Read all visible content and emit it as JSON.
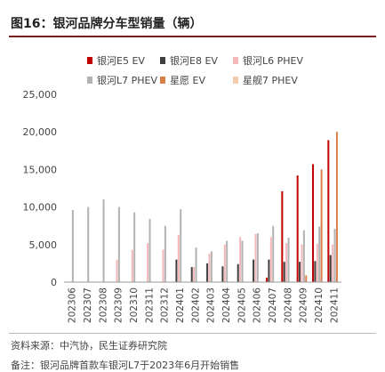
{
  "figure": {
    "title": "图16：银河品牌分车型销量（辆）",
    "source": "资料来源：中汽协，民生证券研究院",
    "note": "备注：银河品牌首款车银河L7于2023年6月开始销售"
  },
  "chart_data": {
    "type": "bar",
    "title": "",
    "xlabel": "",
    "ylabel": "",
    "ylim": [
      0,
      25000
    ],
    "yticks": [
      0,
      5000,
      10000,
      15000,
      20000,
      25000
    ],
    "ytick_labels": [
      "0",
      "5,000",
      "10,000",
      "15,000",
      "20,000",
      "25,000"
    ],
    "grid": false,
    "legend_position": "top",
    "categories": [
      "202306",
      "202307",
      "202308",
      "202309",
      "202310",
      "202311",
      "202312",
      "202401",
      "202402",
      "202403",
      "202404",
      "202405",
      "202406",
      "202407",
      "202408",
      "202409",
      "202410",
      "202411"
    ],
    "series": [
      {
        "name": "银河E5 EV",
        "color": "#c00000",
        "values": [
          0,
          0,
          0,
          0,
          0,
          0,
          0,
          0,
          0,
          0,
          0,
          0,
          0,
          600,
          12100,
          14200,
          15700,
          18900
        ]
      },
      {
        "name": "银河E8 EV",
        "color": "#404040",
        "values": [
          0,
          0,
          0,
          0,
          0,
          0,
          0,
          3000,
          2000,
          2500,
          2100,
          2400,
          3000,
          3000,
          2700,
          2700,
          2800,
          3600
        ]
      },
      {
        "name": "银河L6 PHEV",
        "color": "#f4b8b8",
        "values": [
          0,
          0,
          0,
          3000,
          4300,
          5200,
          4300,
          6300,
          2000,
          3800,
          5000,
          6000,
          6400,
          6000,
          5200,
          5000,
          5100,
          5000
        ]
      },
      {
        "name": "银河L7 PHEV",
        "color": "#b3b3b3",
        "values": [
          9600,
          10000,
          11000,
          10000,
          9300,
          8400,
          7500,
          9700,
          4600,
          4100,
          5500,
          5500,
          6500,
          7500,
          5900,
          6900,
          7400,
          7100
        ]
      },
      {
        "name": "星愿 EV",
        "color": "#d9804a",
        "values": [
          0,
          0,
          0,
          0,
          0,
          0,
          0,
          0,
          0,
          0,
          0,
          0,
          0,
          0,
          0,
          900,
          15000,
          20000
        ]
      },
      {
        "name": "星舰7 PHEV",
        "color": "#f1ccae",
        "values": [
          0,
          0,
          0,
          0,
          0,
          0,
          0,
          0,
          0,
          0,
          0,
          0,
          0,
          0,
          0,
          0,
          0,
          0
        ]
      }
    ]
  }
}
